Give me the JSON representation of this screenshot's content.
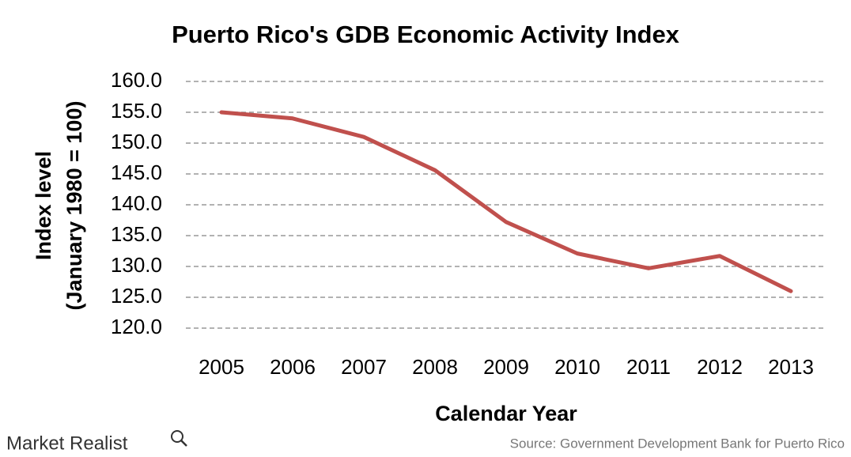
{
  "chart_data": {
    "type": "line",
    "title": "Puerto Rico's GDB Economic Activity Index",
    "x_label": "Calendar Year",
    "y_label": [
      "Index level",
      "(January 1980 = 100)"
    ],
    "categories": [
      "2005",
      "2006",
      "2007",
      "2008",
      "2009",
      "2010",
      "2011",
      "2012",
      "2013"
    ],
    "series": [
      {
        "name": "GDB Economic Activity Index",
        "color": "#c0504d",
        "values": [
          155.0,
          154.0,
          151.0,
          145.6,
          137.2,
          132.1,
          129.7,
          131.7,
          126.0
        ]
      }
    ],
    "ylim": [
      120,
      160
    ],
    "yticks": [
      {
        "value": 120,
        "label": "120.0"
      },
      {
        "value": 125,
        "label": "125.0"
      },
      {
        "value": 130,
        "label": "130.0"
      },
      {
        "value": 135,
        "label": "135.0"
      },
      {
        "value": 140,
        "label": "140.0"
      },
      {
        "value": 145,
        "label": "145.0"
      },
      {
        "value": 150,
        "label": "150.0"
      },
      {
        "value": 155,
        "label": "155.0"
      },
      {
        "value": 160,
        "label": "160.0"
      }
    ],
    "grid": true,
    "source": "Source: Government Development Bank for Puerto Rico",
    "brand": "Market Realist"
  }
}
